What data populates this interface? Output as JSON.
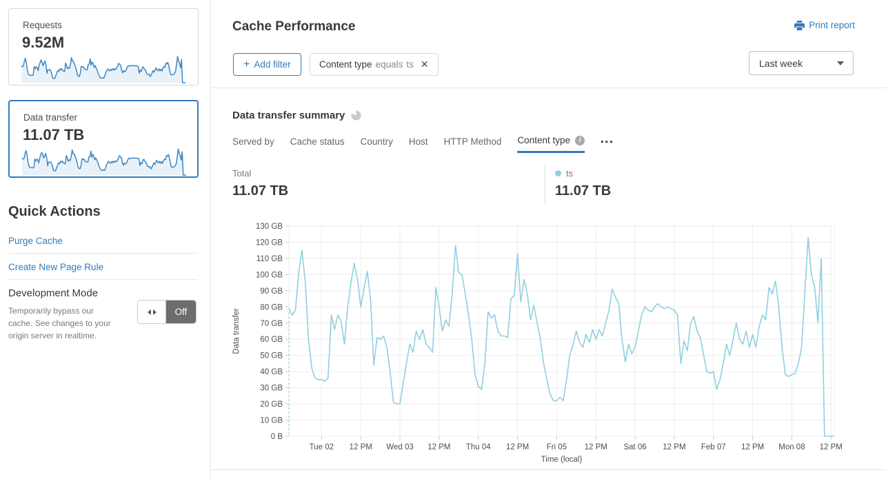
{
  "sidebar": {
    "cards": [
      {
        "label": "Requests",
        "value": "9.52M",
        "selected": false
      },
      {
        "label": "Data transfer",
        "value": "11.07 TB",
        "selected": true
      }
    ],
    "quick_actions": {
      "title": "Quick Actions",
      "links": [
        "Purge Cache",
        "Create New Page Rule"
      ],
      "dev_mode": {
        "title": "Development Mode",
        "description": "Temporarily bypass our cache. See changes to your origin server in realtime.",
        "toggle_state": "Off"
      }
    }
  },
  "header": {
    "title": "Cache Performance",
    "print_label": "Print report",
    "add_filter": {
      "icon": "+",
      "label": "Add filter"
    },
    "filter_chip": {
      "field": "Content type",
      "operator": "equals",
      "value": "ts",
      "close": "✕"
    },
    "time_range": "Last week"
  },
  "summary": {
    "title": "Data transfer summary",
    "tabs": [
      {
        "label": "Served by",
        "active": false,
        "info": false
      },
      {
        "label": "Cache status",
        "active": false,
        "info": false
      },
      {
        "label": "Country",
        "active": false,
        "info": false
      },
      {
        "label": "Host",
        "active": false,
        "info": false
      },
      {
        "label": "HTTP Method",
        "active": false,
        "info": false
      },
      {
        "label": "Content type",
        "active": true,
        "info": true
      }
    ],
    "more_label": "•••",
    "total": {
      "label": "Total",
      "value": "11.07 TB"
    },
    "series_stat": {
      "label": "ts",
      "value": "11.07 TB",
      "dot_color": "#8fcfe0"
    }
  },
  "chart_data": {
    "type": "line",
    "title": "Data transfer summary",
    "xlabel": "Time (local)",
    "ylabel": "Data transfer",
    "unit": "GB",
    "ylim": [
      0,
      130
    ],
    "grid": true,
    "legend_position": "top",
    "y_ticks": [
      {
        "value": 0,
        "label": "0 B"
      },
      {
        "value": 10,
        "label": "10 GB"
      },
      {
        "value": 20,
        "label": "20 GB"
      },
      {
        "value": 30,
        "label": "30 GB"
      },
      {
        "value": 40,
        "label": "40 GB"
      },
      {
        "value": 50,
        "label": "50 GB"
      },
      {
        "value": 60,
        "label": "60 GB"
      },
      {
        "value": 70,
        "label": "70 GB"
      },
      {
        "value": 80,
        "label": "80 GB"
      },
      {
        "value": 90,
        "label": "90 GB"
      },
      {
        "value": 100,
        "label": "100 GB"
      },
      {
        "value": 110,
        "label": "110 GB"
      },
      {
        "value": 120,
        "label": "120 GB"
      },
      {
        "value": 130,
        "label": "130 GB"
      }
    ],
    "x_ticks": [
      {
        "hour": 10,
        "label": "Tue 02"
      },
      {
        "hour": 22,
        "label": "12 PM"
      },
      {
        "hour": 34,
        "label": "Wed 03"
      },
      {
        "hour": 46,
        "label": "12 PM"
      },
      {
        "hour": 58,
        "label": "Thu 04"
      },
      {
        "hour": 70,
        "label": "12 PM"
      },
      {
        "hour": 82,
        "label": "Fri 05"
      },
      {
        "hour": 94,
        "label": "12 PM"
      },
      {
        "hour": 106,
        "label": "Sat 06"
      },
      {
        "hour": 118,
        "label": "12 PM"
      },
      {
        "hour": 130,
        "label": "Feb 07"
      },
      {
        "hour": 142,
        "label": "12 PM"
      },
      {
        "hour": 154,
        "label": "Mon 08"
      },
      {
        "hour": 166,
        "label": "12 PM"
      }
    ],
    "hours_total": 167,
    "start_dashed": true,
    "series": [
      {
        "name": "ts",
        "color": "#8fcfe0",
        "hours_per_point": 1,
        "values": [
          79,
          75,
          78,
          101,
          115,
          96,
          60,
          42,
          36,
          35,
          35,
          34,
          36,
          75,
          66,
          75,
          71,
          57,
          80,
          95,
          107,
          97,
          80,
          91,
          102,
          85,
          44,
          61,
          60,
          62,
          55,
          40,
          21,
          20,
          20,
          33,
          45,
          57,
          52,
          65,
          60,
          66,
          57,
          55,
          52,
          92,
          80,
          65,
          72,
          68,
          88,
          118,
          101,
          100,
          88,
          75,
          60,
          38,
          31,
          29,
          45,
          77,
          73,
          75,
          65,
          62,
          62,
          61,
          85,
          87,
          113,
          83,
          97,
          88,
          72,
          81,
          70,
          60,
          45,
          35,
          26,
          22,
          22,
          24,
          22,
          35,
          50,
          57,
          65,
          58,
          55,
          63,
          58,
          66,
          60,
          66,
          62,
          70,
          78,
          91,
          86,
          82,
          60,
          46,
          57,
          51,
          55,
          65,
          75,
          80,
          78,
          77,
          80,
          82,
          80,
          79,
          80,
          79,
          78,
          75,
          45,
          59,
          53,
          70,
          74,
          65,
          61,
          50,
          40,
          39,
          40,
          29,
          35,
          45,
          57,
          50,
          60,
          70,
          60,
          57,
          65,
          55,
          63,
          55,
          68,
          75,
          72,
          92,
          88,
          96,
          80,
          55,
          38,
          37,
          38,
          39,
          45,
          55,
          90,
          123,
          100,
          92,
          70,
          110,
          0,
          0,
          0,
          0
        ]
      }
    ]
  },
  "colors": {
    "accent_blue": "#2f7bbf",
    "chart_line": "#8fcfe0",
    "sparkline_line": "#3e87c2",
    "sparkline_fill": "#e9f1f8",
    "text_dark": "#36393a",
    "text_gray": "#797979",
    "grid": "#ececec"
  }
}
